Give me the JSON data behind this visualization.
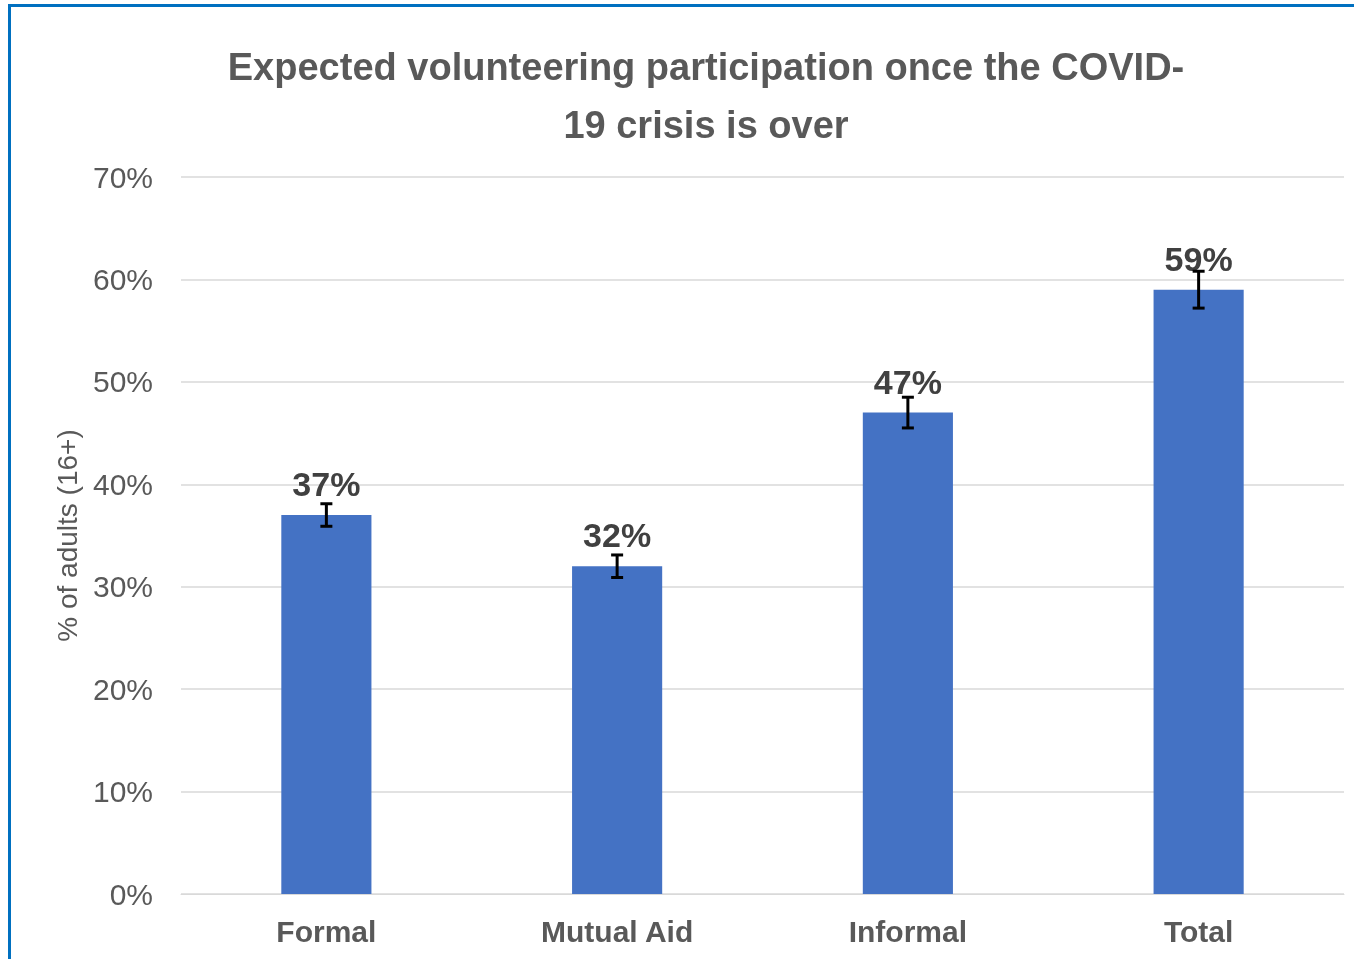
{
  "chart_data": {
    "type": "bar",
    "title": "Expected volunteering participation once the COVID-\n19 crisis is over",
    "ylabel": "% of adults (16+)",
    "categories": [
      "Formal",
      "Mutual Aid",
      "Informal",
      "Total"
    ],
    "values": [
      37,
      32,
      47,
      59
    ],
    "errors": [
      1.1,
      1.1,
      1.5,
      1.8
    ],
    "color": "#4472c4",
    "value_labels": [
      "37%",
      "32%",
      "47%",
      "59%"
    ],
    "ylim": [
      0,
      70
    ],
    "yticks": [
      {
        "value": 0,
        "label": "0%"
      },
      {
        "value": 10,
        "label": "10%"
      },
      {
        "value": 20,
        "label": "20%"
      },
      {
        "value": 30,
        "label": "30%"
      },
      {
        "value": 40,
        "label": "40%"
      },
      {
        "value": 50,
        "label": "50%"
      },
      {
        "value": 60,
        "label": "60%"
      },
      {
        "value": 70,
        "label": "70%"
      }
    ],
    "grid": "y"
  }
}
